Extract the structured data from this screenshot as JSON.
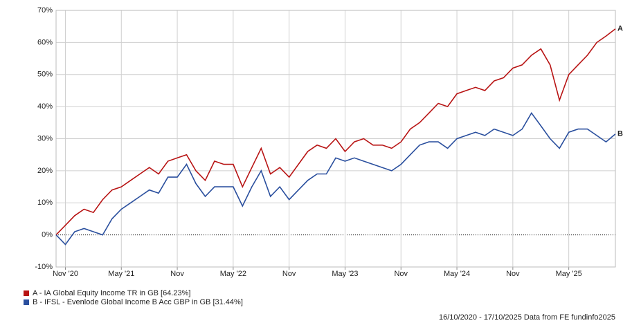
{
  "chart_data": {
    "type": "line",
    "categories": [
      null,
      "Nov '20",
      null,
      null,
      null,
      null,
      null,
      "May '21",
      null,
      null,
      null,
      null,
      null,
      "Nov",
      null,
      null,
      null,
      null,
      null,
      "May '22",
      null,
      null,
      null,
      null,
      null,
      "Nov",
      null,
      null,
      null,
      null,
      null,
      "May '23",
      null,
      null,
      null,
      null,
      null,
      "Nov",
      null,
      null,
      null,
      null,
      null,
      "May '24",
      null,
      null,
      null,
      null,
      null,
      "Nov",
      null,
      null,
      null,
      null,
      null,
      "May '25",
      null,
      null,
      null,
      null,
      null
    ],
    "series": [
      {
        "name": "A - IA Global Equity Income TR in GB [64.23%]",
        "end_label": "A",
        "color": "#b81414",
        "values": [
          0,
          3,
          6,
          8,
          7,
          11,
          14,
          15,
          17,
          19,
          21,
          19,
          23,
          24,
          25,
          20,
          17,
          23,
          22,
          22,
          15,
          21,
          27,
          19,
          21,
          18,
          22,
          26,
          28,
          27,
          30,
          26,
          29,
          30,
          28,
          28,
          27,
          29,
          33,
          35,
          38,
          41,
          40,
          44,
          45,
          46,
          45,
          48,
          49,
          52,
          53,
          56,
          58,
          53,
          42,
          50,
          53,
          56,
          60,
          62,
          64.23
        ]
      },
      {
        "name": "B - IFSL - Evenlode Global Income B Acc GBP in GB [31.44%]",
        "end_label": "B",
        "color": "#2a4f9e",
        "values": [
          0,
          -3,
          1,
          2,
          1,
          0,
          5,
          8,
          10,
          12,
          14,
          13,
          18,
          18,
          22,
          16,
          12,
          15,
          15,
          15,
          9,
          15,
          20,
          12,
          15,
          11,
          14,
          17,
          19,
          19,
          24,
          23,
          24,
          23,
          22,
          21,
          20,
          22,
          25,
          28,
          29,
          29,
          27,
          30,
          31,
          32,
          31,
          33,
          32,
          31,
          33,
          38,
          34,
          30,
          27,
          32,
          33,
          33,
          31,
          29,
          31.44
        ]
      }
    ],
    "ylim": [
      -10,
      70
    ],
    "yticks": [
      {
        "value": -10,
        "label": "-10%"
      },
      {
        "value": 0,
        "label": "0%"
      },
      {
        "value": 10,
        "label": "10%"
      },
      {
        "value": 20,
        "label": "20%"
      },
      {
        "value": 30,
        "label": "30%"
      },
      {
        "value": 40,
        "label": "40%"
      },
      {
        "value": 50,
        "label": "50%"
      },
      {
        "value": 60,
        "label": "60%"
      },
      {
        "value": 70,
        "label": "70%"
      }
    ],
    "grid": true,
    "footer": "16/10/2020 - 17/10/2025 Data from FE fundinfo2025"
  }
}
